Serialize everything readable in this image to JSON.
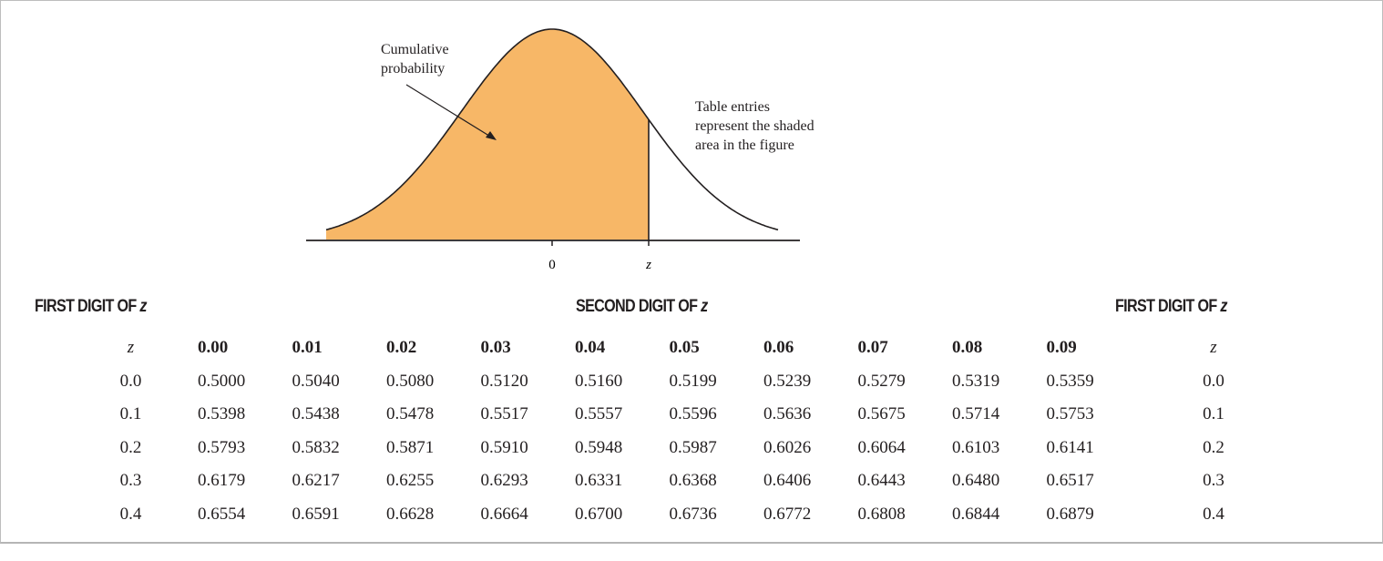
{
  "figure": {
    "label_cumulative": [
      "Cumulative",
      "probability"
    ],
    "label_table": [
      "Table entries",
      "represent the shaded",
      "area in the figure"
    ],
    "tick_zero": "0",
    "tick_z": "z",
    "fill_color": "#f7b767"
  },
  "headings": {
    "left": "FIRST DIGIT OF ",
    "center": "SECOND DIGIT OF ",
    "right": "FIRST DIGIT OF ",
    "var": "z"
  },
  "table": {
    "z_header": "z",
    "columns": [
      "0.00",
      "0.01",
      "0.02",
      "0.03",
      "0.04",
      "0.05",
      "0.06",
      "0.07",
      "0.08",
      "0.09"
    ],
    "rows": [
      {
        "z": "0.0",
        "values": [
          "0.5000",
          "0.5040",
          "0.5080",
          "0.5120",
          "0.5160",
          "0.5199",
          "0.5239",
          "0.5279",
          "0.5319",
          "0.5359"
        ]
      },
      {
        "z": "0.1",
        "values": [
          "0.5398",
          "0.5438",
          "0.5478",
          "0.5517",
          "0.5557",
          "0.5596",
          "0.5636",
          "0.5675",
          "0.5714",
          "0.5753"
        ]
      },
      {
        "z": "0.2",
        "values": [
          "0.5793",
          "0.5832",
          "0.5871",
          "0.5910",
          "0.5948",
          "0.5987",
          "0.6026",
          "0.6064",
          "0.6103",
          "0.6141"
        ]
      },
      {
        "z": "0.3",
        "values": [
          "0.6179",
          "0.6217",
          "0.6255",
          "0.6293",
          "0.6331",
          "0.6368",
          "0.6406",
          "0.6443",
          "0.6480",
          "0.6517"
        ]
      },
      {
        "z": "0.4",
        "values": [
          "0.6554",
          "0.6591",
          "0.6628",
          "0.6664",
          "0.6700",
          "0.6736",
          "0.6772",
          "0.6808",
          "0.6844",
          "0.6879"
        ]
      }
    ]
  }
}
